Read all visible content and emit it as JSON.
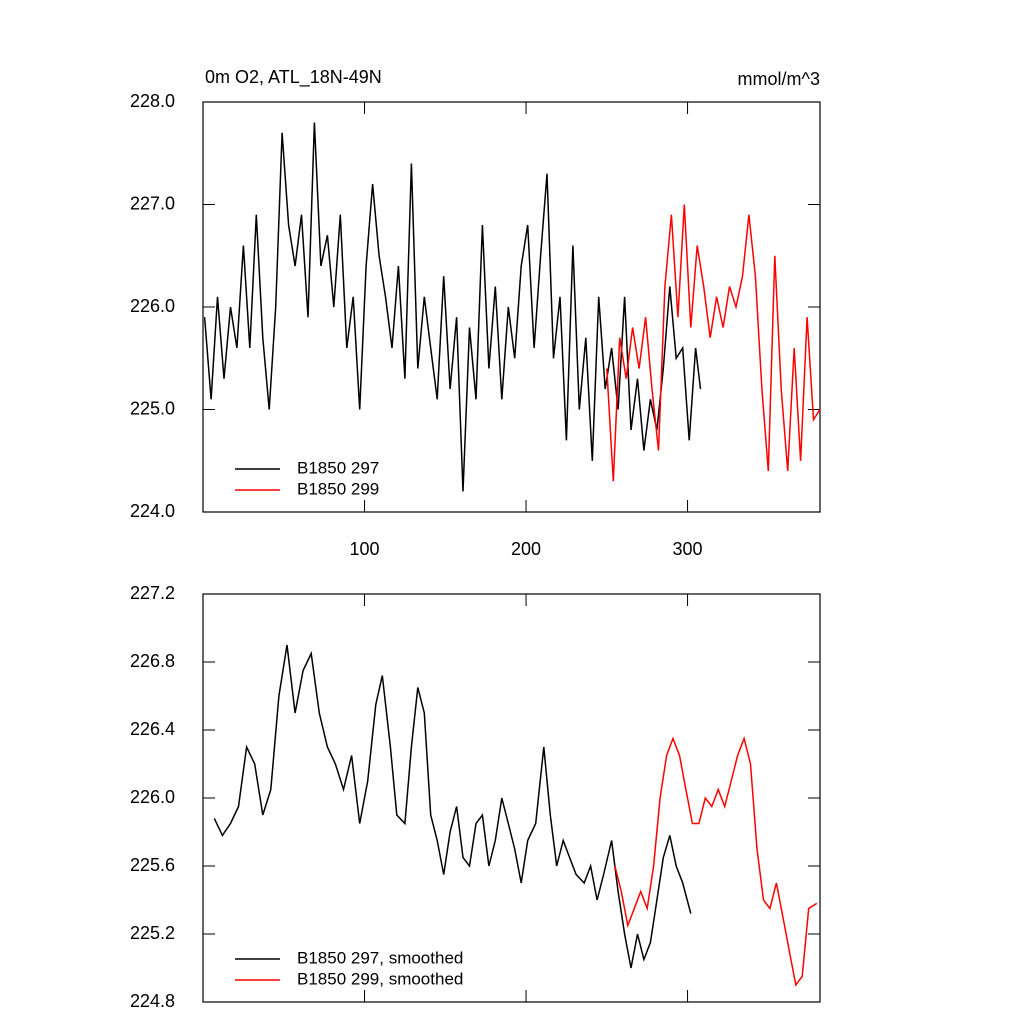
{
  "chart_data": [
    {
      "type": "line",
      "title": "0m O2, ATL_18N-49N",
      "units": "mmol/m^3",
      "xlim": [
        0,
        382
      ],
      "xticks": [
        100,
        200,
        300
      ],
      "xticklabels": true,
      "ylim": [
        224,
        228
      ],
      "yticks": [
        {
          "value": 224,
          "label": "224.0"
        },
        {
          "value": 225,
          "label": "225.0"
        },
        {
          "value": 226,
          "label": "226.0"
        },
        {
          "value": 227,
          "label": "227.0"
        },
        {
          "value": 228,
          "label": "228.0"
        }
      ],
      "legend": "lower left",
      "series": [
        {
          "name": "B1850 297",
          "color": "#000000",
          "x": [
            1,
            5,
            9,
            13,
            17,
            21,
            25,
            29,
            33,
            37,
            41,
            45,
            49,
            53,
            57,
            61,
            65,
            69,
            73,
            77,
            81,
            85,
            89,
            93,
            97,
            101,
            105,
            109,
            113,
            117,
            121,
            125,
            129,
            133,
            137,
            141,
            145,
            149,
            153,
            157,
            161,
            165,
            169,
            173,
            177,
            181,
            185,
            189,
            193,
            197,
            201,
            205,
            209,
            213,
            217,
            221,
            225,
            229,
            233,
            237,
            241,
            245,
            249,
            253,
            257,
            261,
            265,
            269,
            273,
            277,
            281,
            285,
            289,
            293,
            297,
            301,
            305,
            308
          ],
          "values": [
            225.9,
            225.1,
            226.1,
            225.3,
            226.0,
            225.6,
            226.6,
            225.6,
            226.9,
            225.7,
            225.0,
            226.0,
            227.7,
            226.8,
            226.4,
            226.9,
            225.9,
            227.8,
            226.4,
            226.7,
            226.0,
            226.9,
            225.6,
            226.1,
            225.0,
            226.4,
            227.2,
            226.5,
            226.1,
            225.6,
            226.4,
            225.3,
            227.4,
            225.4,
            226.1,
            225.6,
            225.1,
            226.3,
            225.2,
            225.9,
            224.2,
            225.8,
            225.1,
            226.8,
            225.4,
            226.2,
            225.1,
            226.0,
            225.5,
            226.4,
            226.8,
            225.6,
            226.5,
            227.3,
            225.5,
            226.1,
            224.7,
            226.6,
            225.0,
            225.7,
            224.5,
            226.1,
            225.2,
            225.6,
            225.0,
            226.1,
            224.8,
            225.3,
            224.6,
            225.1,
            224.8,
            225.4,
            226.2,
            225.5,
            225.6,
            224.7,
            225.6,
            225.2
          ]
        },
        {
          "name": "B1850 299",
          "color": "#ff0000",
          "x": [
            250,
            254,
            258,
            262,
            266,
            270,
            274,
            278,
            282,
            286,
            290,
            294,
            298,
            302,
            306,
            310,
            314,
            318,
            322,
            326,
            330,
            334,
            338,
            342,
            346,
            350,
            354,
            358,
            362,
            366,
            370,
            374,
            378,
            382
          ],
          "values": [
            225.4,
            224.3,
            225.7,
            225.3,
            225.8,
            225.4,
            225.9,
            225.2,
            224.6,
            226.2,
            226.9,
            225.9,
            227.0,
            225.8,
            226.6,
            226.2,
            225.7,
            226.1,
            225.8,
            226.2,
            226.0,
            226.3,
            226.9,
            226.3,
            225.2,
            224.4,
            226.5,
            225.2,
            224.4,
            225.6,
            224.5,
            225.9,
            224.9,
            225.0
          ]
        }
      ]
    },
    {
      "type": "line",
      "xlim": [
        0,
        382
      ],
      "xticks": [
        100,
        200,
        300
      ],
      "xticklabels": false,
      "ylim": [
        224.8,
        227.2
      ],
      "yticks": [
        224.8,
        225.2,
        225.6,
        {
          "value": 226,
          "label": "226.0"
        },
        226.4,
        226.8,
        227.2
      ],
      "legend": "lower left",
      "series": [
        {
          "name": "B1850 297, smoothed",
          "color": "#000000",
          "x": [
            7,
            12,
            17,
            22,
            27,
            32,
            37,
            42,
            47,
            52,
            57,
            62,
            67,
            72,
            77,
            82,
            87,
            92,
            97,
            102,
            107,
            111,
            116,
            120,
            125,
            129,
            133,
            137,
            141,
            145,
            149,
            153,
            157,
            161,
            165,
            169,
            173,
            177,
            181,
            185,
            189,
            193,
            197,
            201,
            206,
            211,
            215,
            219,
            223,
            227,
            231,
            236,
            240,
            244,
            248,
            253,
            257,
            261,
            265,
            269,
            273,
            277,
            281,
            285,
            289,
            293,
            297,
            302
          ],
          "values": [
            225.88,
            225.78,
            225.85,
            225.95,
            226.3,
            226.2,
            225.9,
            226.05,
            226.6,
            226.9,
            226.5,
            226.75,
            226.85,
            226.5,
            226.3,
            226.2,
            226.05,
            226.25,
            225.85,
            226.1,
            226.55,
            226.72,
            226.3,
            225.9,
            225.85,
            226.3,
            226.65,
            226.5,
            225.9,
            225.75,
            225.55,
            225.8,
            225.95,
            225.65,
            225.6,
            225.85,
            225.9,
            225.6,
            225.75,
            226.0,
            225.85,
            225.7,
            225.5,
            225.75,
            225.85,
            226.3,
            225.9,
            225.6,
            225.75,
            225.65,
            225.55,
            225.5,
            225.6,
            225.4,
            225.55,
            225.75,
            225.45,
            225.2,
            225.0,
            225.2,
            225.05,
            225.15,
            225.4,
            225.65,
            225.78,
            225.6,
            225.5,
            225.32
          ]
        },
        {
          "name": "B1850 299, smoothed",
          "color": "#ff0000",
          "x": [
            255,
            259,
            263,
            267,
            271,
            275,
            279,
            283,
            287,
            291,
            295,
            299,
            303,
            307,
            311,
            315,
            319,
            323,
            327,
            331,
            335,
            339,
            343,
            347,
            351,
            355,
            359,
            363,
            367,
            371,
            375,
            380
          ],
          "values": [
            225.6,
            225.45,
            225.25,
            225.35,
            225.45,
            225.35,
            225.6,
            226.0,
            226.25,
            226.35,
            226.25,
            226.05,
            225.85,
            225.85,
            226.0,
            225.95,
            226.05,
            225.95,
            226.1,
            226.25,
            226.35,
            226.2,
            225.7,
            225.4,
            225.35,
            225.5,
            225.3,
            225.1,
            224.9,
            224.95,
            225.35,
            225.38
          ]
        }
      ]
    }
  ]
}
